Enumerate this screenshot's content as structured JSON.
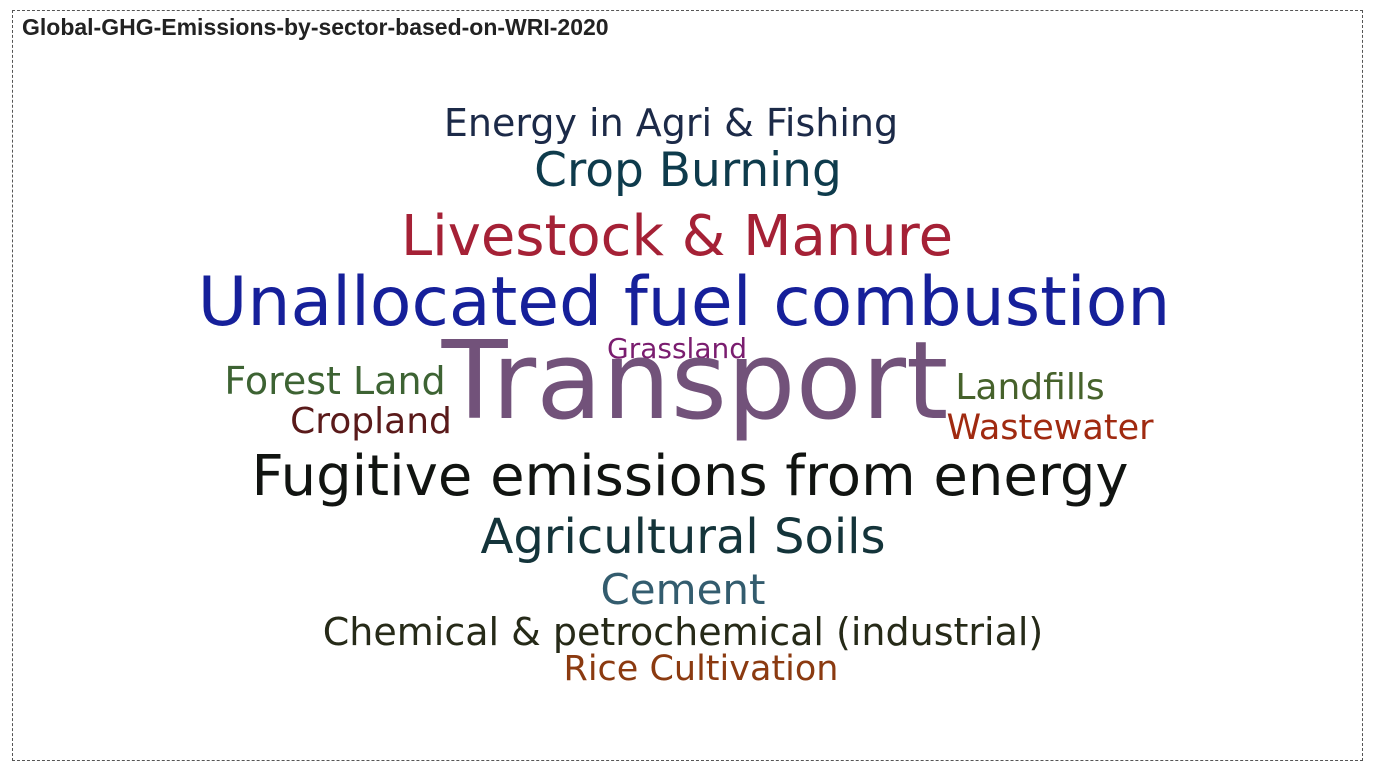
{
  "title": "Global-GHG-Emissions-by-sector-based-on-WRI-2020",
  "chart_data": {
    "type": "wordcloud",
    "title": "Global-GHG-Emissions-by-sector-based-on-WRI-2020",
    "words": [
      {
        "text": "Energy in Agri & Fishing",
        "weight": 1.7,
        "color": "#1c2a48"
      },
      {
        "text": "Crop Burning",
        "weight": 2.0,
        "color": "#0e3b4c"
      },
      {
        "text": "Livestock & Manure",
        "weight": 5.8,
        "color": "#a52136"
      },
      {
        "text": "Unallocated fuel combustion",
        "weight": 7.8,
        "color": "#16209a"
      },
      {
        "text": "Grassland",
        "weight": 0.1,
        "color": "#7a1d6f"
      },
      {
        "text": "Forest Land",
        "weight": 2.2,
        "color": "#3d6333"
      },
      {
        "text": "Transport",
        "weight": 16.2,
        "color": "#72527a"
      },
      {
        "text": "Landfills",
        "weight": 1.9,
        "color": "#46622b"
      },
      {
        "text": "Cropland",
        "weight": 1.4,
        "color": "#5a1a1a"
      },
      {
        "text": "Wastewater",
        "weight": 1.3,
        "color": "#a02a10"
      },
      {
        "text": "Fugitive emissions from energy",
        "weight": 5.8,
        "color": "#111411"
      },
      {
        "text": "Agricultural Soils",
        "weight": 4.1,
        "color": "#14343a"
      },
      {
        "text": "Cement",
        "weight": 3.0,
        "color": "#335c6e"
      },
      {
        "text": "Chemical & petrochemical (industrial)",
        "weight": 2.2,
        "color": "#262a18"
      },
      {
        "text": "Rice Cultivation",
        "weight": 1.3,
        "color": "#8b3a10"
      }
    ]
  }
}
